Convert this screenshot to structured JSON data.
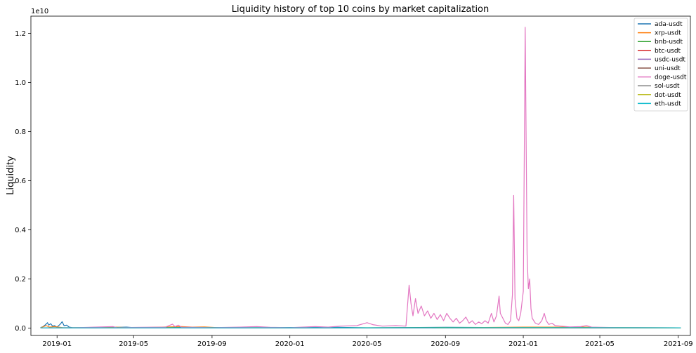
{
  "chart_data": {
    "type": "line",
    "title": "Liquidity history of top 10 coins by market capitalization",
    "xlabel": "",
    "ylabel": "Liquidity",
    "y_multiplier_label": "1e10",
    "y_multiplier": 10000000000.0,
    "ylim": [
      -0.03,
      1.27
    ],
    "xlim": [
      "2018-11-21",
      "2021-09-20"
    ],
    "yticks": [
      0.0,
      0.2,
      0.4,
      0.6,
      0.8,
      1.0,
      1.2
    ],
    "ytick_labels": [
      "0.0",
      "0.2",
      "0.4",
      "0.6",
      "0.8",
      "1.0",
      "1.2"
    ],
    "xticks": [
      "2019-01-01",
      "2019-05-01",
      "2019-09-01",
      "2020-01-01",
      "2020-05-01",
      "2020-09-01",
      "2021-01-01",
      "2021-05-01",
      "2021-09-01"
    ],
    "xtick_labels": [
      "2019-01",
      "2019-05",
      "2019-09",
      "2020-01",
      "2020-05",
      "2020-09",
      "2021-01",
      "2021-05",
      "2021-09"
    ],
    "grid": false,
    "legend_position": "top-right",
    "series": [
      {
        "name": "ada-usdt",
        "color": "#1f77b4",
        "points": [
          [
            "2018-12-06",
            0.002
          ],
          [
            "2018-12-10",
            0.006
          ],
          [
            "2018-12-14",
            0.014
          ],
          [
            "2018-12-17",
            0.022
          ],
          [
            "2018-12-19",
            0.012
          ],
          [
            "2018-12-22",
            0.018
          ],
          [
            "2018-12-25",
            0.008
          ],
          [
            "2018-12-28",
            0.01
          ],
          [
            "2019-01-01",
            0.004
          ],
          [
            "2019-01-06",
            0.016
          ],
          [
            "2019-01-09",
            0.026
          ],
          [
            "2019-01-12",
            0.01
          ],
          [
            "2019-01-16",
            0.012
          ],
          [
            "2019-01-20",
            0.004
          ],
          [
            "2019-01-25",
            0.002
          ],
          [
            "2019-03-01",
            0.001
          ],
          [
            "2019-04-20",
            0.004
          ],
          [
            "2019-05-01",
            0.002
          ],
          [
            "2019-07-01",
            0.003
          ],
          [
            "2019-10-01",
            0.001
          ],
          [
            "2020-03-15",
            0.003
          ],
          [
            "2020-05-01",
            0.001
          ],
          [
            "2020-09-01",
            0.003
          ],
          [
            "2021-01-01",
            0.002
          ],
          [
            "2021-05-01",
            0.001
          ],
          [
            "2021-09-05",
            0.001
          ]
        ]
      },
      {
        "name": "xrp-usdt",
        "color": "#ff7f0e",
        "points": [
          [
            "2018-12-06",
            0.001
          ],
          [
            "2018-12-15",
            0.01
          ],
          [
            "2018-12-20",
            0.004
          ],
          [
            "2018-12-28",
            0.006
          ],
          [
            "2019-01-10",
            0.002
          ],
          [
            "2019-03-01",
            0.001
          ],
          [
            "2019-04-01",
            0.004
          ],
          [
            "2019-05-01",
            0.001
          ],
          [
            "2019-07-15",
            0.006
          ],
          [
            "2019-08-01",
            0.004
          ],
          [
            "2019-08-20",
            0.005
          ],
          [
            "2019-09-10",
            0.002
          ],
          [
            "2019-12-01",
            0.001
          ],
          [
            "2020-05-01",
            0.001
          ],
          [
            "2020-10-01",
            0.002
          ],
          [
            "2021-01-01",
            0.004
          ],
          [
            "2021-04-10",
            0.004
          ],
          [
            "2021-05-01",
            0.001
          ],
          [
            "2021-09-05",
            0.001
          ]
        ]
      },
      {
        "name": "bnb-usdt",
        "color": "#2ca02c",
        "points": [
          [
            "2018-12-06",
            0.001
          ],
          [
            "2019-06-01",
            0.002
          ],
          [
            "2020-03-01",
            0.001
          ],
          [
            "2020-09-01",
            0.002
          ],
          [
            "2021-01-01",
            0.002
          ],
          [
            "2021-05-01",
            0.002
          ],
          [
            "2021-09-05",
            0.001
          ]
        ]
      },
      {
        "name": "btc-usdt",
        "color": "#d62728",
        "points": [
          [
            "2018-12-06",
            0.001
          ],
          [
            "2019-06-01",
            0.001
          ],
          [
            "2020-03-01",
            0.001
          ],
          [
            "2021-01-01",
            0.001
          ],
          [
            "2021-09-05",
            0.001
          ]
        ]
      },
      {
        "name": "usdc-usdt",
        "color": "#9467bd",
        "points": [
          [
            "2018-12-06",
            0.001
          ],
          [
            "2019-06-01",
            0.001
          ],
          [
            "2020-06-01",
            0.001
          ],
          [
            "2021-09-05",
            0.001
          ]
        ]
      },
      {
        "name": "uni-usdt",
        "color": "#8c564b",
        "points": [
          [
            "2020-09-17",
            0.001
          ],
          [
            "2021-01-01",
            0.001
          ],
          [
            "2021-09-05",
            0.001
          ]
        ]
      },
      {
        "name": "doge-usdt",
        "color": "#e377c2",
        "points": [
          [
            "2018-12-06",
            0.001
          ],
          [
            "2019-02-01",
            0.002
          ],
          [
            "2019-03-30",
            0.006
          ],
          [
            "2019-04-05",
            0.002
          ],
          [
            "2019-05-15",
            0.003
          ],
          [
            "2019-06-20",
            0.004
          ],
          [
            "2019-07-01",
            0.016
          ],
          [
            "2019-07-05",
            0.006
          ],
          [
            "2019-07-10",
            0.012
          ],
          [
            "2019-07-15",
            0.004
          ],
          [
            "2019-08-01",
            0.003
          ],
          [
            "2019-09-01",
            0.002
          ],
          [
            "2019-10-15",
            0.004
          ],
          [
            "2019-11-10",
            0.006
          ],
          [
            "2019-12-01",
            0.003
          ],
          [
            "2020-01-01",
            0.002
          ],
          [
            "2020-02-10",
            0.006
          ],
          [
            "2020-03-01",
            0.004
          ],
          [
            "2020-03-20",
            0.008
          ],
          [
            "2020-04-15",
            0.01
          ],
          [
            "2020-05-01",
            0.022
          ],
          [
            "2020-05-10",
            0.014
          ],
          [
            "2020-05-25",
            0.008
          ],
          [
            "2020-06-15",
            0.01
          ],
          [
            "2020-07-01",
            0.008
          ],
          [
            "2020-07-06",
            0.175
          ],
          [
            "2020-07-09",
            0.1
          ],
          [
            "2020-07-12",
            0.05
          ],
          [
            "2020-07-16",
            0.12
          ],
          [
            "2020-07-20",
            0.06
          ],
          [
            "2020-07-25",
            0.09
          ],
          [
            "2020-07-30",
            0.05
          ],
          [
            "2020-08-04",
            0.07
          ],
          [
            "2020-08-09",
            0.04
          ],
          [
            "2020-08-14",
            0.06
          ],
          [
            "2020-08-19",
            0.035
          ],
          [
            "2020-08-24",
            0.055
          ],
          [
            "2020-08-29",
            0.03
          ],
          [
            "2020-09-03",
            0.06
          ],
          [
            "2020-09-08",
            0.04
          ],
          [
            "2020-09-13",
            0.025
          ],
          [
            "2020-09-18",
            0.04
          ],
          [
            "2020-09-23",
            0.02
          ],
          [
            "2020-09-28",
            0.03
          ],
          [
            "2020-10-03",
            0.045
          ],
          [
            "2020-10-08",
            0.02
          ],
          [
            "2020-10-13",
            0.03
          ],
          [
            "2020-10-18",
            0.015
          ],
          [
            "2020-10-23",
            0.025
          ],
          [
            "2020-10-28",
            0.018
          ],
          [
            "2020-11-02",
            0.03
          ],
          [
            "2020-11-07",
            0.02
          ],
          [
            "2020-11-12",
            0.06
          ],
          [
            "2020-11-16",
            0.025
          ],
          [
            "2020-11-20",
            0.05
          ],
          [
            "2020-11-24",
            0.13
          ],
          [
            "2020-11-26",
            0.06
          ],
          [
            "2020-11-30",
            0.04
          ],
          [
            "2020-12-04",
            0.02
          ],
          [
            "2020-12-08",
            0.015
          ],
          [
            "2020-12-12",
            0.03
          ],
          [
            "2020-12-15",
            0.135
          ],
          [
            "2020-12-17",
            0.54
          ],
          [
            "2020-12-19",
            0.12
          ],
          [
            "2020-12-22",
            0.04
          ],
          [
            "2020-12-25",
            0.03
          ],
          [
            "2020-12-28",
            0.06
          ],
          [
            "2021-01-01",
            0.15
          ],
          [
            "2021-01-04",
            1.225
          ],
          [
            "2021-01-07",
            0.3
          ],
          [
            "2021-01-09",
            0.16
          ],
          [
            "2021-01-11",
            0.2
          ],
          [
            "2021-01-13",
            0.08
          ],
          [
            "2021-01-15",
            0.04
          ],
          [
            "2021-01-20",
            0.02
          ],
          [
            "2021-01-25",
            0.015
          ],
          [
            "2021-01-30",
            0.03
          ],
          [
            "2021-02-03",
            0.06
          ],
          [
            "2021-02-06",
            0.03
          ],
          [
            "2021-02-10",
            0.015
          ],
          [
            "2021-02-15",
            0.02
          ],
          [
            "2021-02-20",
            0.01
          ],
          [
            "2021-03-01",
            0.008
          ],
          [
            "2021-03-15",
            0.005
          ],
          [
            "2021-04-01",
            0.006
          ],
          [
            "2021-04-10",
            0.01
          ],
          [
            "2021-04-18",
            0.004
          ],
          [
            "2021-05-01",
            0.003
          ],
          [
            "2021-06-01",
            0.002
          ],
          [
            "2021-07-01",
            0.002
          ],
          [
            "2021-09-05",
            0.001
          ]
        ]
      },
      {
        "name": "sol-usdt",
        "color": "#7f7f7f",
        "points": [
          [
            "2020-08-11",
            0.001
          ],
          [
            "2021-01-01",
            0.001
          ],
          [
            "2021-09-05",
            0.001
          ]
        ]
      },
      {
        "name": "dot-usdt",
        "color": "#bcbd22",
        "points": [
          [
            "2020-08-18",
            0.001
          ],
          [
            "2020-11-01",
            0.002
          ],
          [
            "2021-01-01",
            0.002
          ],
          [
            "2021-09-05",
            0.001
          ]
        ]
      },
      {
        "name": "eth-usdt",
        "color": "#17becf",
        "points": [
          [
            "2018-12-06",
            0.001
          ],
          [
            "2019-06-01",
            0.001
          ],
          [
            "2020-06-01",
            0.001
          ],
          [
            "2021-01-01",
            0.002
          ],
          [
            "2021-09-05",
            0.001
          ]
        ]
      }
    ]
  }
}
